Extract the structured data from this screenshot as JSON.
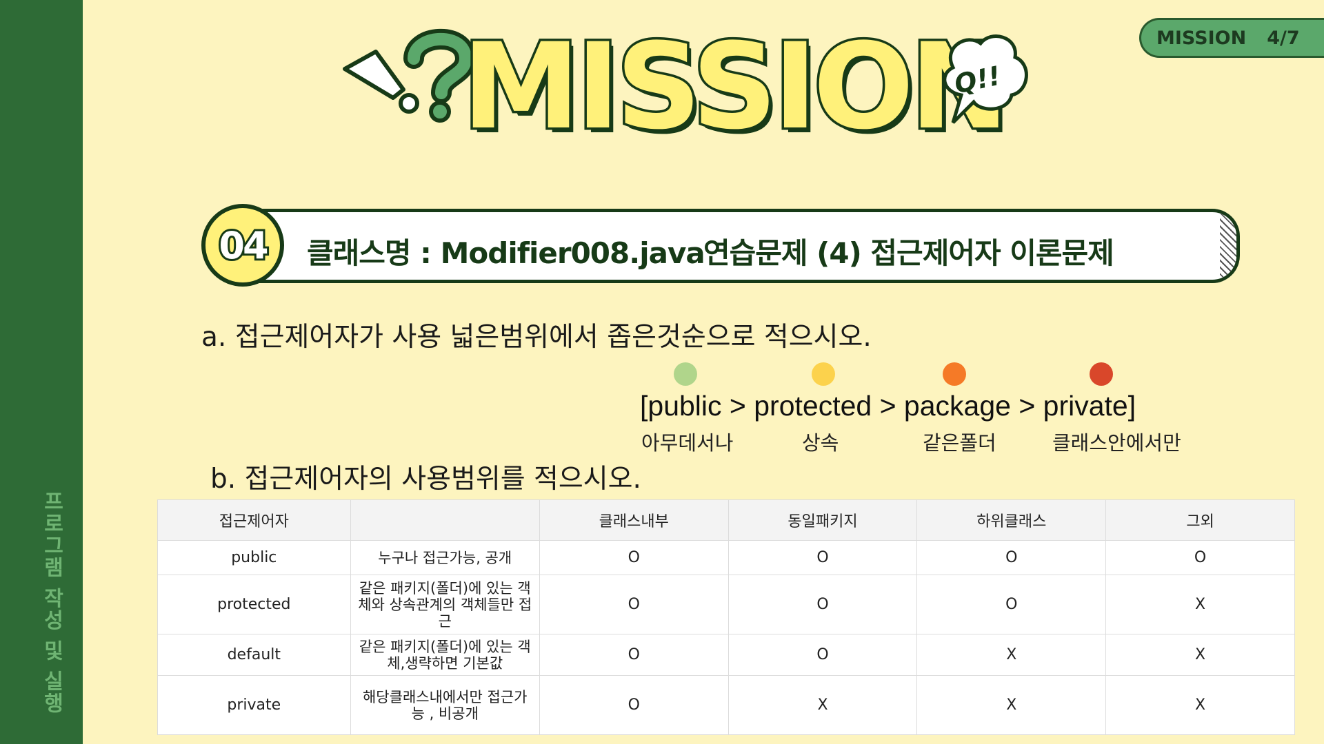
{
  "sidebar": {
    "vertical_label": "프로그램 작성 및 실행"
  },
  "badge": {
    "label": "MISSION",
    "progress": "4/7"
  },
  "header": {
    "title": "MISSION",
    "bubble": "Q!!"
  },
  "banner": {
    "number": "04",
    "class_label": "클래스명 : Modifier008.java",
    "exercise_title": "연습문제 (4) 접근제어자 이론문제"
  },
  "question_a": {
    "text": "a. 접근제어자가 사용 넓은범위에서 좁은것순으로 적으시오.",
    "answer": "[public > protected > package > private]",
    "labels": [
      "아무데서나",
      "상속",
      "같은폴더",
      "클래스안에서만"
    ],
    "dot_colors": [
      "#b0d58b",
      "#fcd24c",
      "#f57a27",
      "#d9472a"
    ]
  },
  "question_b": {
    "text": "b. 접근제어자의 사용범위를 적으시오."
  },
  "table": {
    "headers": [
      "접근제어자",
      "",
      "클래스내부",
      "동일패키지",
      "하위클래스",
      "그외"
    ],
    "rows": [
      {
        "name": "public",
        "desc": "누구나 접근가능, 공개",
        "values": [
          "O",
          "O",
          "O",
          "O"
        ]
      },
      {
        "name": "protected",
        "desc": "같은 패키지(폴더)에 있는 객체와 상속관계의 객체들만 접근",
        "values": [
          "O",
          "O",
          "O",
          "X"
        ]
      },
      {
        "name": "default",
        "desc": "같은 패키지(폴더)에 있는 객체,생략하면 기본값",
        "values": [
          "O",
          "O",
          "X",
          "X"
        ]
      },
      {
        "name": "private",
        "desc": "해당클래스내에서만 접근가능 , 비공개",
        "values": [
          "O",
          "X",
          "X",
          "X"
        ]
      }
    ]
  }
}
